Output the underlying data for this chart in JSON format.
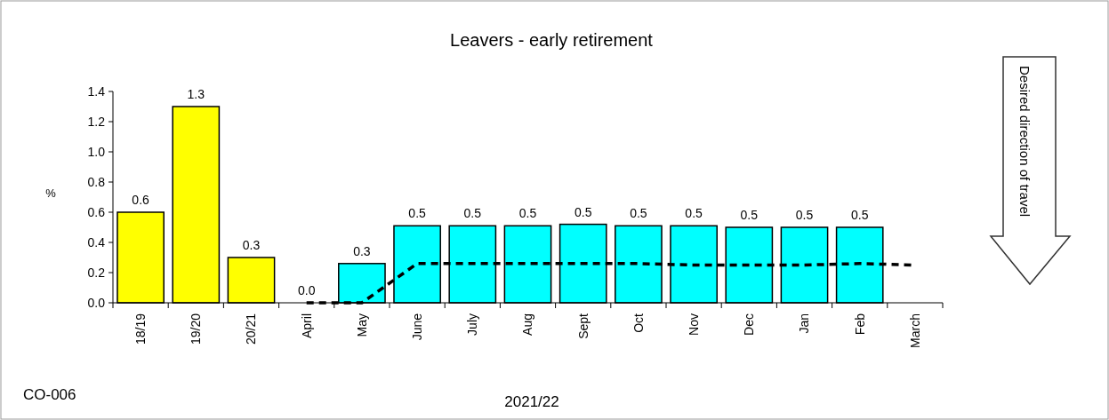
{
  "chart_data": {
    "type": "bar",
    "title": "Leavers - early retirement",
    "xlabel": "2021/22",
    "ylabel": "%",
    "categories": [
      "18/19",
      "19/20",
      "20/21",
      "April",
      "May",
      "June",
      "July",
      "Aug",
      "Sept",
      "Oct",
      "Nov",
      "Dec",
      "Jan",
      "Feb",
      "March"
    ],
    "series": [
      {
        "colors": [
          "#ffff00",
          "#ffff00",
          "#ffff00",
          "#00ffff",
          "#00ffff",
          "#00ffff",
          "#00ffff",
          "#00ffff",
          "#00ffff",
          "#00ffff",
          "#00ffff",
          "#00ffff",
          "#00ffff",
          "#00ffff",
          null
        ],
        "values": [
          0.6,
          1.3,
          0.3,
          0.0,
          0.26,
          0.51,
          0.51,
          0.51,
          0.52,
          0.51,
          0.51,
          0.5,
          0.5,
          0.5,
          null
        ],
        "value_labels": [
          "0.6",
          "1.3",
          "0.3",
          "0.0",
          "0.3",
          "0.5",
          "0.5",
          "0.5",
          "0.5",
          "0.5",
          "0.5",
          "0.5",
          "0.5",
          "0.5",
          null
        ]
      },
      {
        "type": "line",
        "color": "#000000",
        "line_style": "dashed",
        "values": [
          null,
          null,
          null,
          0.0,
          0.0,
          0.26,
          0.26,
          0.26,
          0.26,
          0.26,
          0.25,
          0.25,
          0.25,
          0.26,
          0.25
        ]
      }
    ],
    "ylim": [
      0,
      1.4
    ],
    "yticks": [
      {
        "value": 0,
        "label": "0.0"
      },
      {
        "value": 0.2,
        "label": "0.2"
      },
      {
        "value": 0.4,
        "label": "0.4"
      },
      {
        "value": 0.6,
        "label": "0.6"
      },
      {
        "value": 0.8,
        "label": "0.8"
      },
      {
        "value": 1,
        "label": "1.0"
      },
      {
        "value": 1.2,
        "label": "1.2"
      },
      {
        "value": 1.4,
        "label": "1.4"
      }
    ],
    "grid": false,
    "annotations": [
      "Desired direction of travel",
      "CO-006"
    ]
  }
}
